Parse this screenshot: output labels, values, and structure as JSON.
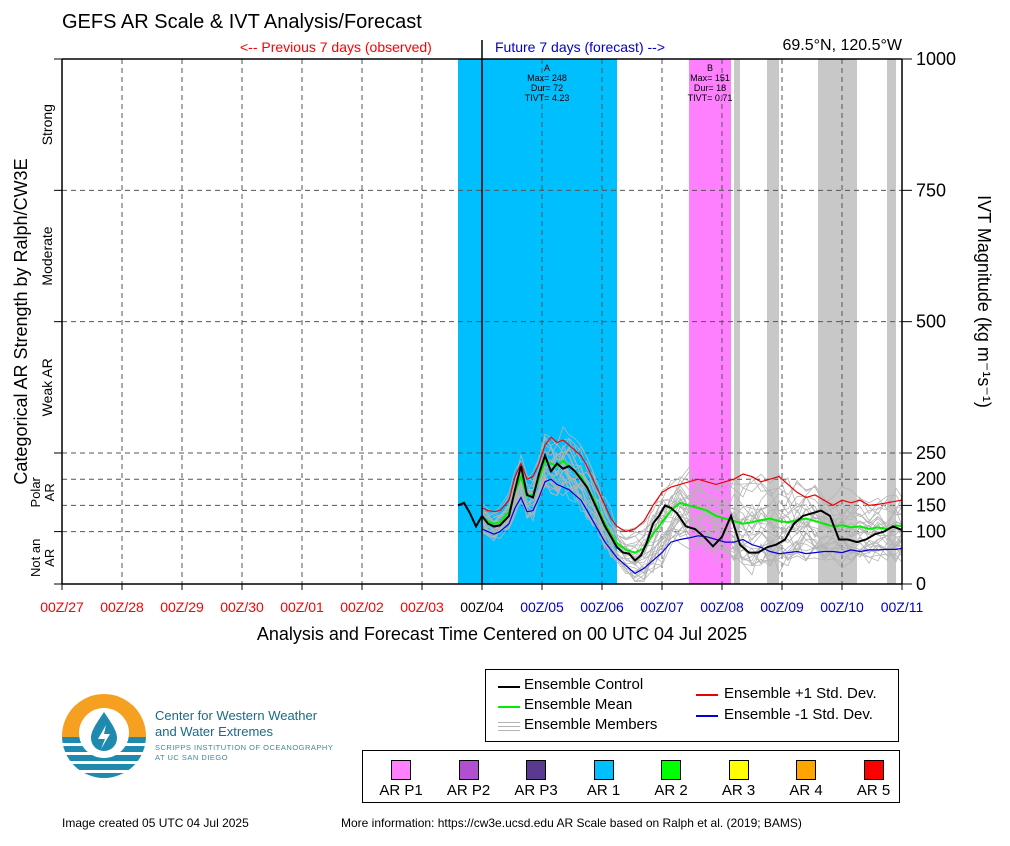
{
  "title": "GEFS AR Scale & IVT Analysis/Forecast",
  "previous_label": "<-- Previous 7 days (observed)",
  "future_label": "Future 7 days (forecast) -->",
  "location": "69.5°N, 120.5°W",
  "colors": {
    "ar1": "#00bfff",
    "ar_p1": "#ff80ff",
    "grey_band": "#c8c8c8",
    "control": "#000000",
    "mean": "#00ee00",
    "plus_sd": "#ee0000",
    "minus_sd": "#0000dd",
    "members": "#b4b4b4",
    "observed_tick": "#ff0000",
    "forecast_tick": "#0000cc"
  },
  "chart_data": {
    "type": "line",
    "x_range": [
      "00Z/27 Jun 2025",
      "00Z/11 Jul 2025"
    ],
    "xlabel": "Analysis and Forecast Time Centered on 00 UTC 04 Jul 2025",
    "ylabel_left": "Categorical AR Strength by Ralph/CW3E",
    "ylabel_right": "IVT Magnitude (kg m⁻¹s⁻¹)",
    "x_ticks": [
      "00Z/27",
      "00Z/28",
      "00Z/29",
      "00Z/30",
      "00Z/01",
      "00Z/02",
      "00Z/03",
      "00Z/04",
      "00Z/05",
      "00Z/06",
      "00Z/07",
      "00Z/08",
      "00Z/09",
      "00Z/10",
      "00Z/11"
    ],
    "x_tick_kind": [
      "obs",
      "obs",
      "obs",
      "obs",
      "obs",
      "obs",
      "obs",
      "now",
      "fc",
      "fc",
      "fc",
      "fc",
      "fc",
      "fc",
      "fc"
    ],
    "y_ticks": [
      0,
      100,
      150,
      200,
      250,
      500,
      750,
      1000
    ],
    "ylim": [
      0,
      1000
    ],
    "categories_left": [
      {
        "label": "Not an AR",
        "from": 0,
        "to": 100
      },
      {
        "label": "Polar AR",
        "from": 100,
        "to": 250
      },
      {
        "label": "Weak AR",
        "from": 250,
        "to": 500
      },
      {
        "label": "Moderate",
        "from": 500,
        "to": 750
      },
      {
        "label": "Strong",
        "from": 750,
        "to": 1000
      }
    ],
    "ar_events": [
      {
        "id": "A",
        "start_day": 6.6,
        "end_day": 9.25,
        "scale": "AR 1",
        "max": 248,
        "dur": 72,
        "tivt": "4.23"
      },
      {
        "id": "B",
        "start_day": 10.45,
        "end_day": 11.15,
        "scale": "AR P1",
        "max": 151,
        "dur": 18,
        "tivt": "0.71"
      }
    ],
    "uncertain_bands": [
      [
        11.2,
        11.3
      ],
      [
        11.75,
        11.95
      ],
      [
        12.6,
        13.25
      ],
      [
        13.75,
        13.9
      ]
    ],
    "series": [
      {
        "name": "Ensemble Control",
        "color": "#000000",
        "x": [
          6.6,
          6.7,
          6.8,
          6.9,
          7.0,
          7.1,
          7.2,
          7.3,
          7.45,
          7.55,
          7.65,
          7.75,
          7.85,
          7.95,
          8.05,
          8.15,
          8.25,
          8.35,
          8.45,
          8.55,
          8.65,
          8.75,
          8.85,
          8.95,
          9.05,
          9.15,
          9.25,
          9.35,
          9.45,
          9.55,
          9.65,
          9.75,
          9.85,
          9.95,
          10.05,
          10.15,
          10.25,
          10.4,
          10.55,
          10.7,
          10.85,
          11.0,
          11.15,
          11.3,
          11.45,
          11.6,
          11.75,
          11.9,
          12.05,
          12.2,
          12.35,
          12.5,
          12.65,
          12.8,
          12.95,
          13.1,
          13.25,
          13.4,
          13.55,
          13.7,
          13.85,
          14.0
        ],
        "y": [
          150,
          155,
          135,
          110,
          130,
          115,
          110,
          112,
          130,
          180,
          225,
          170,
          165,
          210,
          245,
          215,
          230,
          220,
          225,
          215,
          200,
          185,
          160,
          135,
          110,
          90,
          70,
          60,
          58,
          45,
          55,
          80,
          115,
          130,
          150,
          145,
          135,
          110,
          105,
          90,
          72,
          90,
          130,
          75,
          60,
          60,
          70,
          75,
          85,
          115,
          130,
          135,
          140,
          130,
          85,
          85,
          80,
          85,
          95,
          100,
          110,
          103
        ]
      },
      {
        "name": "Ensemble Mean",
        "color": "#00ee00",
        "x": [
          7.0,
          7.1,
          7.2,
          7.3,
          7.45,
          7.55,
          7.65,
          7.75,
          7.85,
          7.95,
          8.05,
          8.15,
          8.25,
          8.35,
          8.45,
          8.55,
          8.65,
          8.75,
          8.85,
          8.95,
          9.05,
          9.15,
          9.25,
          9.4,
          9.55,
          9.7,
          9.85,
          10.0,
          10.15,
          10.3,
          10.45,
          10.6,
          10.75,
          10.9,
          11.05,
          11.2,
          11.35,
          11.5,
          11.65,
          11.8,
          11.95,
          12.1,
          12.25,
          12.4,
          12.55,
          12.7,
          12.85,
          13.0,
          13.15,
          13.3,
          13.45,
          13.6,
          13.75,
          13.9,
          14.0
        ],
        "y": [
          128,
          120,
          115,
          118,
          138,
          175,
          205,
          168,
          170,
          200,
          235,
          230,
          225,
          235,
          225,
          215,
          205,
          185,
          165,
          140,
          115,
          95,
          78,
          65,
          60,
          68,
          95,
          118,
          140,
          155,
          150,
          145,
          140,
          130,
          125,
          120,
          115,
          118,
          122,
          125,
          120,
          118,
          122,
          125,
          120,
          115,
          110,
          112,
          108,
          110,
          105,
          108,
          105,
          112,
          110
        ]
      },
      {
        "name": "Ensemble +1 Std. Dev.",
        "color": "#ee0000",
        "x": [
          7.0,
          7.1,
          7.2,
          7.3,
          7.45,
          7.55,
          7.65,
          7.75,
          7.85,
          7.95,
          8.05,
          8.15,
          8.25,
          8.35,
          8.45,
          8.55,
          8.65,
          8.75,
          8.85,
          8.95,
          9.05,
          9.15,
          9.25,
          9.4,
          9.55,
          9.7,
          9.85,
          10.0,
          10.15,
          10.3,
          10.45,
          10.6,
          10.75,
          10.9,
          11.05,
          11.2,
          11.35,
          11.5,
          11.65,
          11.8,
          11.95,
          12.1,
          12.25,
          12.4,
          12.55,
          12.7,
          12.85,
          13.0,
          13.15,
          13.3,
          13.45,
          13.6,
          13.75,
          13.9,
          14.0
        ],
        "y": [
          145,
          140,
          138,
          140,
          160,
          205,
          230,
          200,
          205,
          230,
          265,
          280,
          270,
          275,
          265,
          255,
          245,
          225,
          200,
          175,
          150,
          125,
          110,
          100,
          105,
          120,
          150,
          175,
          185,
          190,
          195,
          200,
          195,
          190,
          195,
          200,
          210,
          205,
          195,
          200,
          205,
          190,
          175,
          165,
          170,
          160,
          150,
          160,
          155,
          160,
          150,
          152,
          155,
          158,
          160
        ]
      },
      {
        "name": "Ensemble -1 Std. Dev.",
        "color": "#0000dd",
        "x": [
          7.0,
          7.1,
          7.2,
          7.3,
          7.45,
          7.55,
          7.65,
          7.75,
          7.85,
          7.95,
          8.05,
          8.15,
          8.25,
          8.35,
          8.45,
          8.55,
          8.65,
          8.75,
          8.85,
          8.95,
          9.05,
          9.15,
          9.25,
          9.4,
          9.55,
          9.7,
          9.85,
          10.0,
          10.15,
          10.3,
          10.45,
          10.6,
          10.75,
          10.9,
          11.05,
          11.2,
          11.35,
          11.5,
          11.65,
          11.8,
          11.95,
          12.1,
          12.25,
          12.4,
          12.55,
          12.7,
          12.85,
          13.0,
          13.15,
          13.3,
          13.45,
          13.6,
          13.75,
          13.9,
          14.0
        ],
        "y": [
          105,
          100,
          95,
          100,
          115,
          145,
          165,
          138,
          140,
          165,
          195,
          200,
          190,
          185,
          180,
          170,
          160,
          140,
          120,
          100,
          80,
          65,
          50,
          35,
          20,
          30,
          45,
          60,
          80,
          85,
          88,
          92,
          90,
          85,
          80,
          80,
          85,
          75,
          70,
          62,
          58,
          60,
          62,
          58,
          60,
          62,
          62,
          60,
          65,
          62,
          65,
          65,
          66,
          66,
          68
        ]
      }
    ]
  },
  "legend": {
    "control": "Ensemble Control",
    "mean": "Ensemble Mean",
    "members": "Ensemble Members",
    "plus_sd": "Ensemble +1 Std. Dev.",
    "minus_sd": "Ensemble -1 Std. Dev."
  },
  "ar_scale_legend": [
    {
      "label": "AR P1",
      "color": "#ff80ff"
    },
    {
      "label": "AR P2",
      "color": "#b050d0"
    },
    {
      "label": "AR P3",
      "color": "#5a3a90"
    },
    {
      "label": "AR 1",
      "color": "#00bfff"
    },
    {
      "label": "AR 2",
      "color": "#00ff00"
    },
    {
      "label": "AR 3",
      "color": "#ffff00"
    },
    {
      "label": "AR 4",
      "color": "#ffa500"
    },
    {
      "label": "AR 5",
      "color": "#ff0000"
    }
  ],
  "logo": {
    "line1": "Center for Western Weather",
    "line2": "and Water Extremes",
    "sub1": "SCRIPPS INSTITUTION OF OCEANOGRAPHY",
    "sub2": "AT UC SAN DIEGO"
  },
  "footer": {
    "created": "Image created 05 UTC 04 Jul 2025",
    "more_info": "More information: https://cw3e.ucsd.edu AR Scale based on Ralph et al. (2019; BAMS)"
  },
  "event_text": {
    "A": {
      "id": "A",
      "max": "Max= 248",
      "dur": "Dur= 72",
      "tivt": "TIVT= 4.23"
    },
    "B": {
      "id": "B",
      "max": "Max= 151",
      "dur": "Dur= 18",
      "tivt": "TIVT= 0.71"
    }
  }
}
